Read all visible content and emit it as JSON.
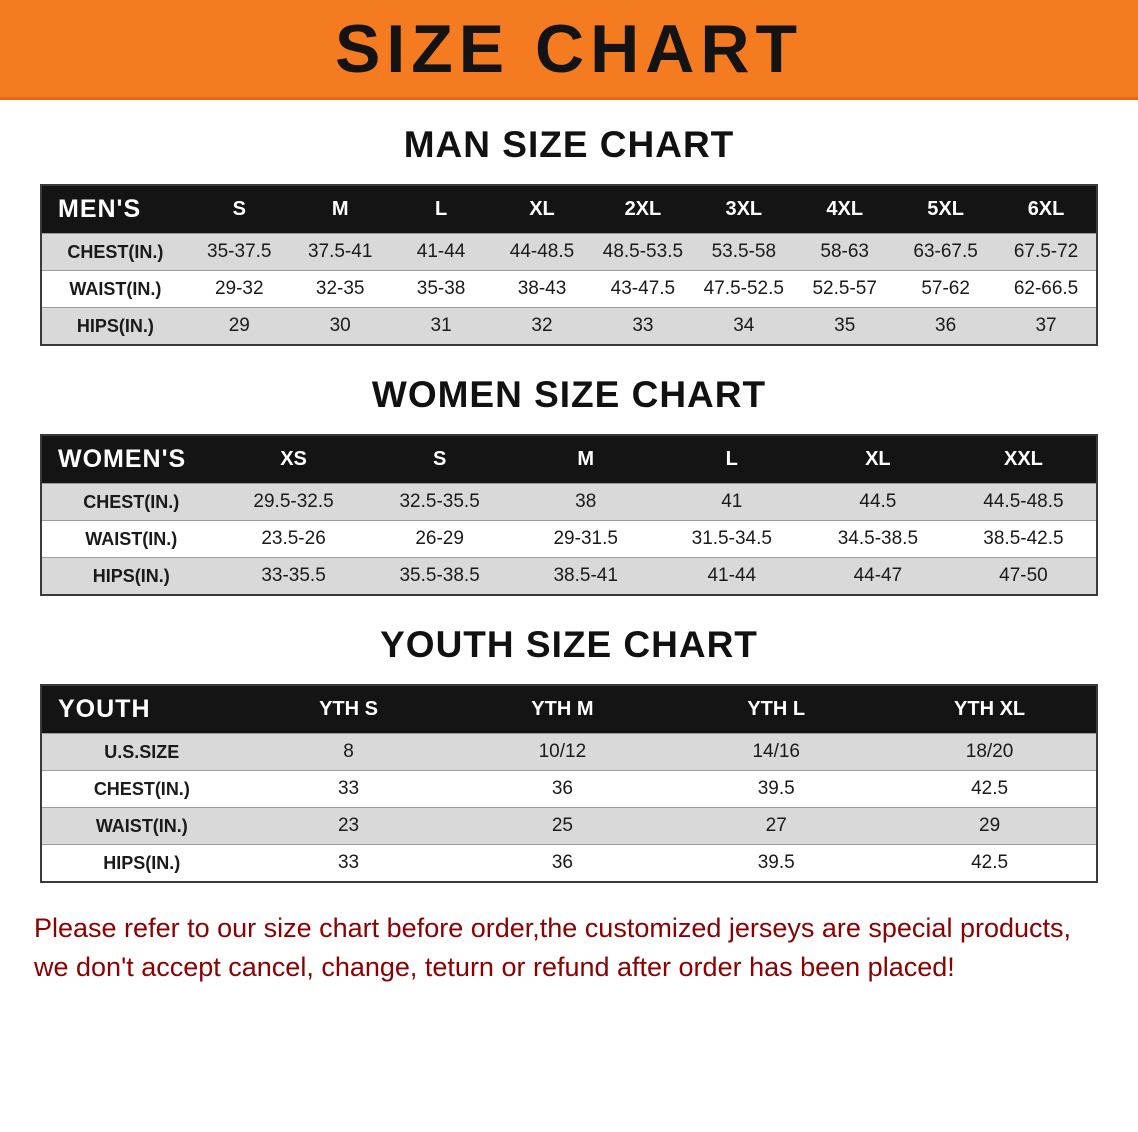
{
  "banner": {
    "title": "SIZE CHART",
    "bg_color": "#f47b20",
    "text_color": "#131313"
  },
  "colors": {
    "table_header_bg": "#141414",
    "table_header_text": "#ffffff",
    "row_stripe": "#d9d9d9",
    "footer_text": "#8b0000"
  },
  "chart_data": [
    {
      "type": "table",
      "title": "MAN SIZE CHART",
      "header": [
        "MEN'S",
        "S",
        "M",
        "L",
        "XL",
        "2XL",
        "3XL",
        "4XL",
        "5XL",
        "6XL"
      ],
      "rows": [
        [
          "CHEST(IN.)",
          "35-37.5",
          "37.5-41",
          "41-44",
          "44-48.5",
          "48.5-53.5",
          "53.5-58",
          "58-63",
          "63-67.5",
          "67.5-72"
        ],
        [
          "WAIST(IN.)",
          "29-32",
          "32-35",
          "35-38",
          "38-43",
          "43-47.5",
          "47.5-52.5",
          "52.5-57",
          "57-62",
          "62-66.5"
        ],
        [
          "HIPS(IN.)",
          "29",
          "30",
          "31",
          "32",
          "33",
          "34",
          "35",
          "36",
          "37"
        ]
      ]
    },
    {
      "type": "table",
      "title": "WOMEN SIZE CHART",
      "header": [
        "WOMEN'S",
        "XS",
        "S",
        "M",
        "L",
        "XL",
        "XXL"
      ],
      "rows": [
        [
          "CHEST(IN.)",
          "29.5-32.5",
          "32.5-35.5",
          "38",
          "41",
          "44.5",
          "44.5-48.5"
        ],
        [
          "WAIST(IN.)",
          "23.5-26",
          "26-29",
          "29-31.5",
          "31.5-34.5",
          "34.5-38.5",
          "38.5-42.5"
        ],
        [
          "HIPS(IN.)",
          "33-35.5",
          "35.5-38.5",
          "38.5-41",
          "41-44",
          "44-47",
          "47-50"
        ]
      ]
    },
    {
      "type": "table",
      "title": "YOUTH SIZE CHART",
      "header": [
        "YOUTH",
        "YTH S",
        "YTH M",
        "YTH L",
        "YTH XL"
      ],
      "rows": [
        [
          "U.S.SIZE",
          "8",
          "10/12",
          "14/16",
          "18/20"
        ],
        [
          "CHEST(IN.)",
          "33",
          "36",
          "39.5",
          "42.5"
        ],
        [
          "WAIST(IN.)",
          "23",
          "25",
          "27",
          "29"
        ],
        [
          "HIPS(IN.)",
          "33",
          "36",
          "39.5",
          "42.5"
        ]
      ]
    }
  ],
  "footer": {
    "line1": "Please refer to our size chart before order,the customized jerseys are special products,",
    "line2": "we don't accept cancel, change, teturn or refund after order has been placed!"
  }
}
